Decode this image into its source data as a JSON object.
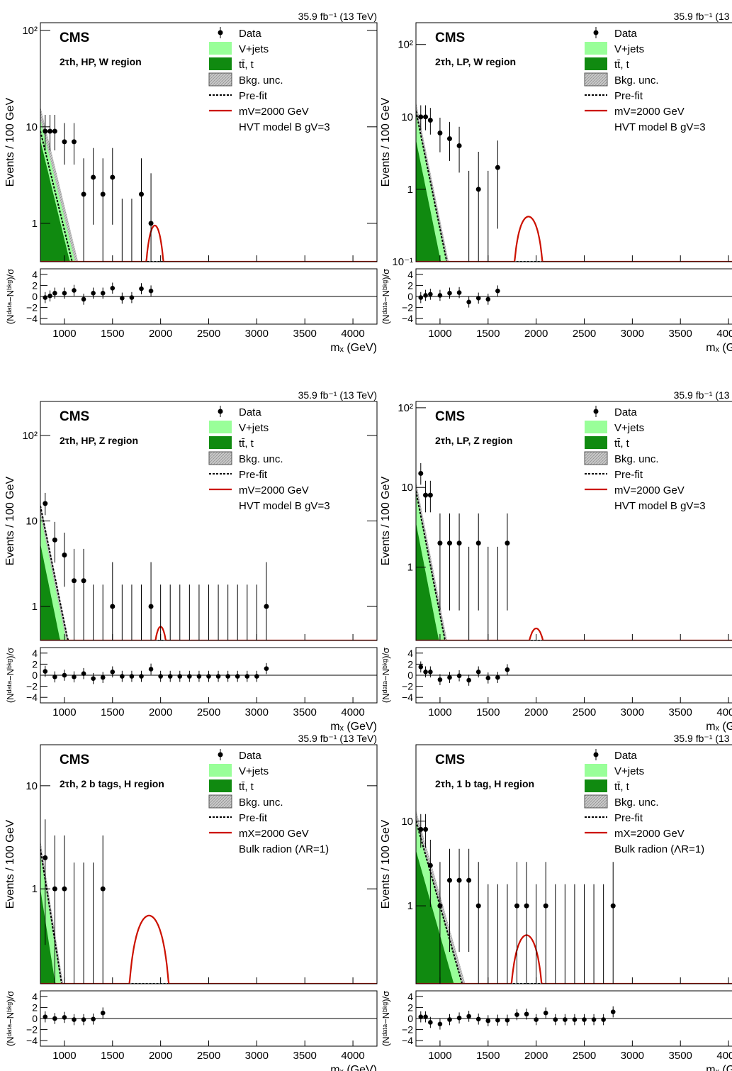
{
  "colors": {
    "vjets": "#99ff99",
    "tt": "#108a10",
    "unc": "#c8c8c8",
    "signal": "#cc1100",
    "prefit": "#000000",
    "data": "#000000"
  },
  "legend": {
    "data": "Data",
    "vjets": "V+jets",
    "tt": "tt̄, t",
    "unc": "Bkg. unc.",
    "prefit": "Pre-fit"
  },
  "common": {
    "cms": "CMS",
    "lumi": "35.9 fb⁻¹ (13 TeV)",
    "xlabel": "mₓ (GeV)",
    "ylabel": "Events / 100 GeV",
    "ratio_ylabel": "(Nᵈᵃᵗᵃ−Nᵇᵏᵍ)/σ",
    "xticks": [
      1000,
      1500,
      2000,
      2500,
      3000,
      3500,
      4000
    ],
    "ratio_ticks": [
      4,
      2,
      0,
      -2,
      -4
    ]
  },
  "chart_data": [
    {
      "type": "scatter",
      "region": "2τh, HP, W region",
      "signal_label": "mV=2000 GeV",
      "model": "HVT model B gV=3",
      "xlim": [
        750,
        4250
      ],
      "ylim": [
        0.4,
        120
      ],
      "yscale": "log",
      "yticks": [
        {
          "v": 1,
          "t": "1"
        },
        {
          "v": 10,
          "t": "10"
        },
        {
          "v": 100,
          "t": "10²"
        }
      ],
      "bkg_at_750": 12,
      "slope_per_100GeV": 0.41,
      "tt_frac": 0.6,
      "prefit_frac": 0.75,
      "signal": {
        "center": 1940,
        "peak": 0.95,
        "halfwidth": 130
      },
      "data_x": [
        800,
        850,
        900,
        1000,
        1100,
        1200,
        1300,
        1400,
        1500,
        1600,
        1700,
        1800,
        1900
      ],
      "data_y": [
        9,
        9,
        9,
        7,
        7,
        2,
        3,
        2,
        3,
        0,
        0,
        2,
        1
      ],
      "ratio": [
        -0.2,
        0.1,
        0.6,
        0.6,
        1.1,
        -0.5,
        0.6,
        0.6,
        1.5,
        -0.3,
        -0.2,
        1.4,
        1.0
      ]
    },
    {
      "type": "scatter",
      "region": "2τh, LP, W region",
      "signal_label": "mV=2000 GeV",
      "model": "HVT model B gV=3",
      "xlim": [
        750,
        4250
      ],
      "ylim": [
        0.1,
        200
      ],
      "yscale": "log",
      "yticks": [
        {
          "v": 0.1,
          "t": "10⁻¹"
        },
        {
          "v": 1,
          "t": "1"
        },
        {
          "v": 10,
          "t": "10"
        },
        {
          "v": 100,
          "t": "10²"
        }
      ],
      "bkg_at_750": 12,
      "slope_per_100GeV": 0.65,
      "tt_frac": 0.4,
      "prefit_frac": 1.0,
      "signal": {
        "center": 1920,
        "peak": 0.42,
        "halfwidth": 180
      },
      "data_x": [
        800,
        850,
        900,
        1000,
        1100,
        1200,
        1300,
        1400,
        1500,
        1600
      ],
      "data_y": [
        10,
        10,
        9,
        6,
        5,
        4,
        0,
        1,
        0,
        2
      ],
      "ratio": [
        -0.2,
        0.2,
        0.4,
        0.2,
        0.6,
        0.7,
        -1.0,
        -0.3,
        -0.5,
        1.0
      ]
    },
    {
      "type": "scatter",
      "region": "2τh, HP, Z region",
      "signal_label": "mV=2000 GeV",
      "model": "HVT model B gV=3",
      "xlim": [
        750,
        4250
      ],
      "ylim": [
        0.4,
        250
      ],
      "yscale": "log",
      "yticks": [
        {
          "v": 1,
          "t": "1"
        },
        {
          "v": 10,
          "t": "10"
        },
        {
          "v": 100,
          "t": "10²"
        }
      ],
      "bkg_at_750": 12,
      "slope_per_100GeV": 0.55,
      "tt_frac": 0.45,
      "prefit_frac": 1.25,
      "signal": {
        "center": 2000,
        "peak": 0.58,
        "halfwidth": 110
      },
      "data_x": [
        800,
        900,
        1000,
        1100,
        1200,
        1300,
        1400,
        1500,
        1600,
        1700,
        1800,
        1900,
        2000,
        2100,
        2200,
        2300,
        2400,
        2500,
        2600,
        2700,
        2800,
        2900,
        3000,
        3100
      ],
      "data_y": [
        16,
        6,
        4,
        2,
        2,
        0,
        0,
        1,
        0,
        0,
        0,
        1,
        0,
        0,
        0,
        0,
        0,
        0,
        0,
        0,
        0,
        0,
        0,
        1
      ],
      "ratio": [
        0.7,
        -0.3,
        0,
        -0.3,
        0.3,
        -0.6,
        -0.4,
        0.6,
        -0.2,
        -0.2,
        -0.2,
        1.1,
        -0.2,
        -0.2,
        -0.2,
        -0.2,
        -0.2,
        -0.2,
        -0.2,
        -0.2,
        -0.2,
        -0.2,
        -0.2,
        1.2
      ]
    },
    {
      "type": "scatter",
      "region": "2τh, LP, Z region",
      "signal_label": "mV=2000 GeV",
      "model": "HVT model B gV=3",
      "xlim": [
        750,
        4250
      ],
      "ylim": [
        0.12,
        120
      ],
      "yscale": "log",
      "yticks": [
        {
          "v": 1,
          "t": "1"
        },
        {
          "v": 10,
          "t": "10"
        },
        {
          "v": 100,
          "t": "10²"
        }
      ],
      "bkg_at_750": 9,
      "slope_per_100GeV": 0.62,
      "tt_frac": 0.4,
      "prefit_frac": 1.0,
      "signal": {
        "center": 2000,
        "peak": 0.17,
        "halfwidth": 150
      },
      "data_x": [
        800,
        850,
        900,
        1000,
        1100,
        1200,
        1300,
        1400,
        1500,
        1600,
        1700
      ],
      "data_y": [
        15,
        8,
        8,
        2,
        2,
        2,
        0,
        2,
        0,
        0,
        2
      ],
      "ratio": [
        1.5,
        0.6,
        0.6,
        -0.8,
        -0.4,
        -0.1,
        -0.9,
        0.6,
        -0.5,
        -0.4,
        1.0
      ]
    },
    {
      "type": "scatter",
      "region": "2τh, 2 b tags, H region",
      "signal_label": "mX=2000 GeV",
      "model": "Bulk radion (ΛR=1)",
      "xlim": [
        750,
        4250
      ],
      "ylim": [
        0.12,
        25
      ],
      "yscale": "log",
      "yticks": [
        {
          "v": 1,
          "t": "1"
        },
        {
          "v": 10,
          "t": "10"
        }
      ],
      "bkg_at_750": 2.2,
      "slope_per_100GeV": 0.59,
      "tt_frac": 0.45,
      "prefit_frac": 1.1,
      "signal": {
        "center": 1880,
        "peak": 0.55,
        "halfwidth": 250
      },
      "data_x": [
        800,
        900,
        1000,
        1100,
        1200,
        1300,
        1400
      ],
      "data_y": [
        2,
        1,
        1,
        0,
        0,
        0,
        1
      ],
      "ratio": [
        0.3,
        0,
        0.2,
        -0.2,
        -0.2,
        -0.1,
        1.0
      ]
    },
    {
      "type": "scatter",
      "region": "2τh, 1 b tag, H region",
      "signal_label": "mX=2000 GeV",
      "model": "Bulk radion (ΛR=1)",
      "xlim": [
        750,
        4250
      ],
      "ylim": [
        0.12,
        80
      ],
      "yscale": "log",
      "yticks": [
        {
          "v": 1,
          "t": "1"
        },
        {
          "v": 10,
          "t": "10"
        }
      ],
      "bkg_at_750": 10,
      "slope_per_100GeV": 0.4,
      "tt_frac": 0.45,
      "prefit_frac": 1.0,
      "signal": {
        "center": 1900,
        "peak": 0.45,
        "halfwidth": 200
      },
      "data_x": [
        800,
        850,
        900,
        1000,
        1100,
        1200,
        1300,
        1400,
        1500,
        1600,
        1700,
        1800,
        1900,
        2000,
        2100,
        2200,
        2300,
        2400,
        2500,
        2600,
        2700,
        2800
      ],
      "data_y": [
        8,
        8,
        3,
        1,
        2,
        2,
        2,
        1,
        0,
        0,
        0,
        1,
        1,
        0,
        1,
        0,
        0,
        0,
        0,
        0,
        0,
        1
      ],
      "ratio": [
        0.3,
        0.3,
        -0.7,
        -1.0,
        -0.2,
        0.1,
        0.4,
        -0.1,
        -0.4,
        -0.3,
        -0.3,
        0.7,
        0.8,
        -0.2,
        1.0,
        -0.2,
        -0.2,
        -0.2,
        -0.2,
        -0.2,
        -0.2,
        1.2
      ]
    }
  ]
}
